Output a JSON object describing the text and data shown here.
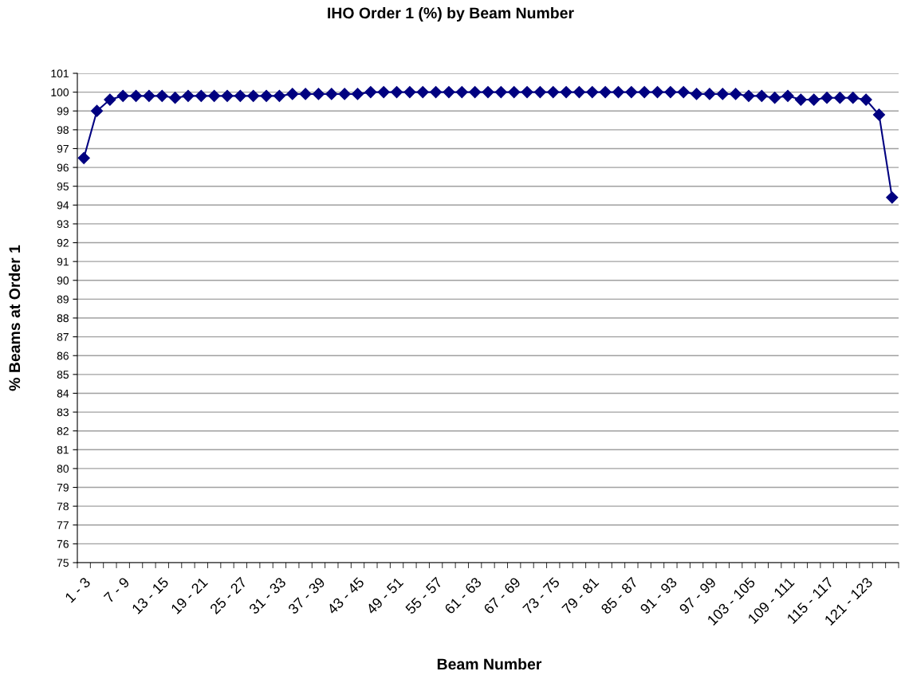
{
  "chart_data": {
    "type": "line",
    "title": "IHO Order 1 (%) by Beam Number",
    "xlabel": "Beam Number",
    "ylabel": "% Beams at Order 1",
    "categories": [
      "1 - 3",
      null,
      null,
      "7 - 9",
      null,
      null,
      "13 - 15",
      null,
      null,
      "19 - 21",
      null,
      null,
      "25 - 27",
      null,
      null,
      "31 - 33",
      null,
      null,
      "37 - 39",
      null,
      null,
      "43 - 45",
      null,
      null,
      "49 - 51",
      null,
      null,
      "55 - 57",
      null,
      null,
      "61 - 63",
      null,
      null,
      "67 - 69",
      null,
      null,
      "73 - 75",
      null,
      null,
      "79 - 81",
      null,
      null,
      "85 - 87",
      null,
      null,
      "91 - 93",
      null,
      null,
      "97 - 99",
      null,
      null,
      "103 - 105",
      null,
      null,
      "109 - 111",
      null,
      null,
      "115 - 117",
      null,
      null,
      "121 - 123",
      null,
      null
    ],
    "series": [
      {
        "color": "#000080",
        "values": [
          96.5,
          99.0,
          99.6,
          99.8,
          99.8,
          99.8,
          99.8,
          99.7,
          99.8,
          99.8,
          99.8,
          99.8,
          99.8,
          99.8,
          99.8,
          99.8,
          99.9,
          99.9,
          99.9,
          99.9,
          99.9,
          99.9,
          100,
          100,
          100,
          100,
          100,
          100,
          100,
          100,
          100,
          100,
          100,
          100,
          100,
          100,
          100,
          100,
          100,
          100,
          100,
          100,
          100,
          100,
          100,
          100,
          100,
          99.9,
          99.9,
          99.9,
          99.9,
          99.8,
          99.8,
          99.7,
          99.8,
          99.6,
          99.6,
          99.7,
          99.7,
          99.7,
          99.6,
          98.8,
          94.4
        ]
      }
    ],
    "ylim": [
      75,
      101
    ],
    "yticks": [
      75,
      76,
      77,
      78,
      79,
      80,
      81,
      82,
      83,
      84,
      85,
      86,
      87,
      88,
      89,
      90,
      91,
      92,
      93,
      94,
      95,
      96,
      97,
      98,
      99,
      100,
      101
    ],
    "grid": "y",
    "marker": "diamond",
    "line_style": "solid"
  }
}
